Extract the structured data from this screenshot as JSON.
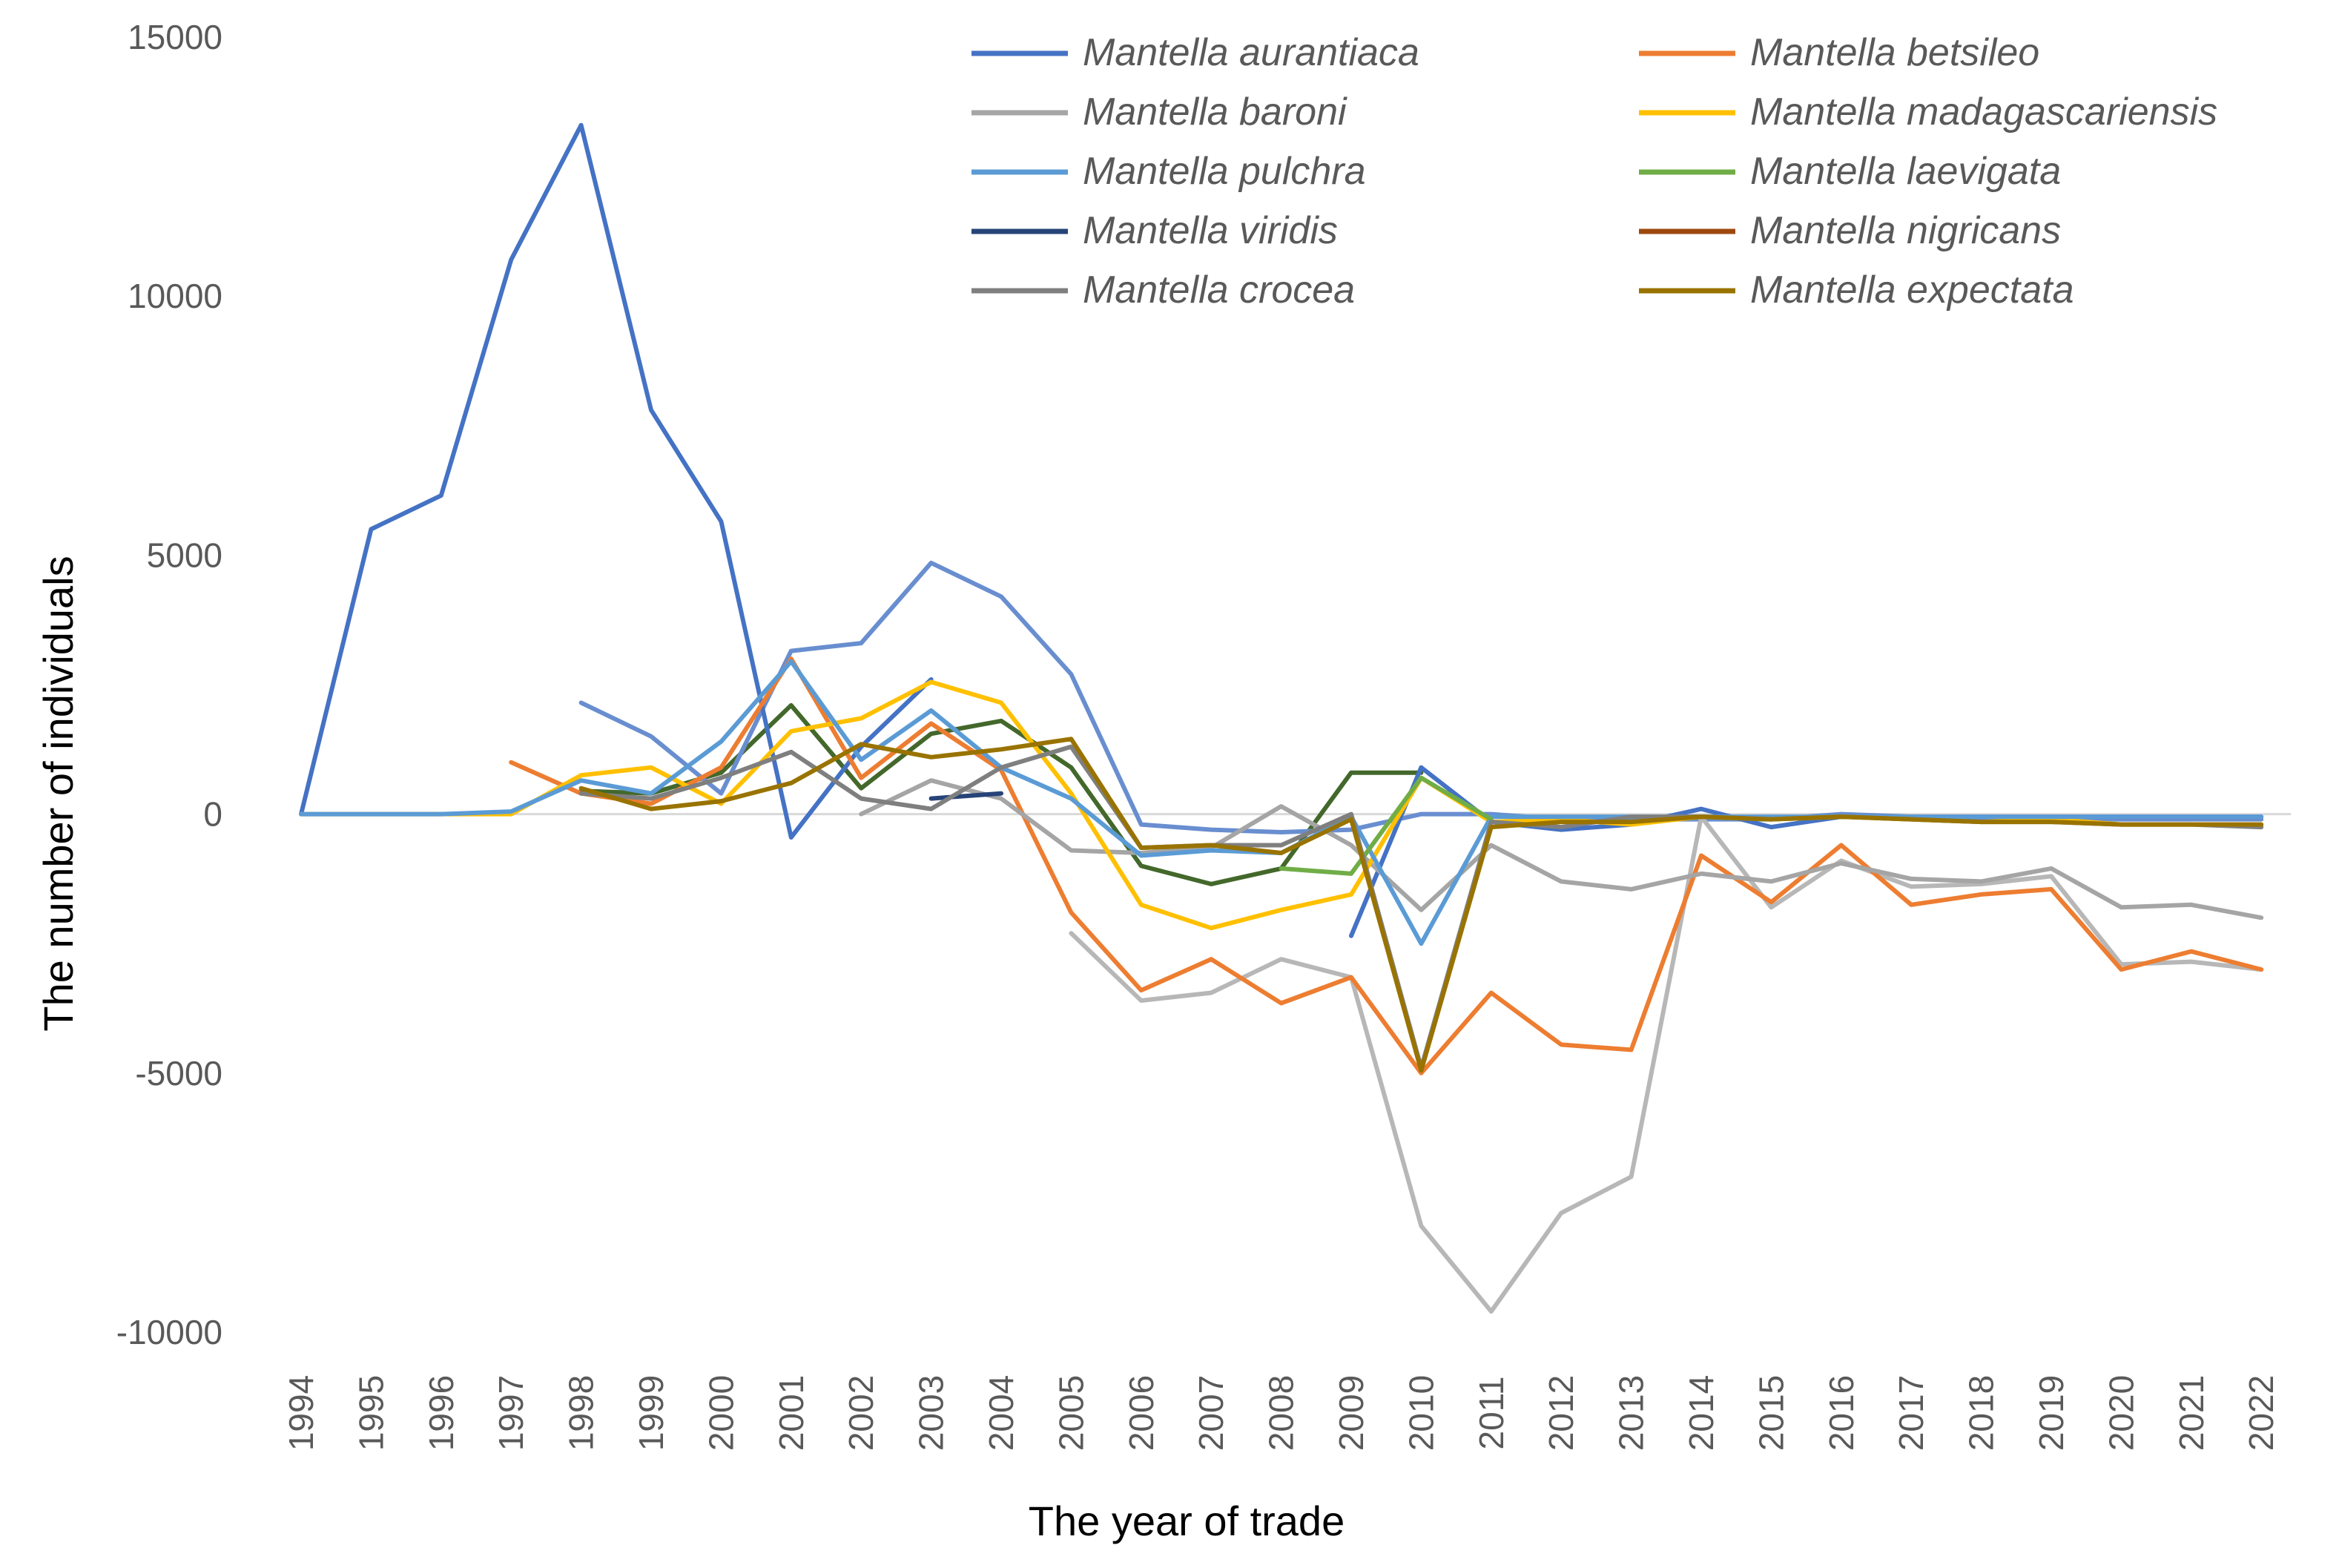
{
  "chart_data": {
    "type": "line",
    "title": "",
    "xlabel": "The year of trade",
    "ylabel": "The number of individuals",
    "ylim": [
      -10000,
      15000
    ],
    "yticks": [
      15000,
      10000,
      5000,
      0,
      -5000,
      -10000
    ],
    "grid": false,
    "legend_position": "top-right",
    "categories": [
      "1994",
      "1995",
      "1996",
      "1997",
      "1998",
      "1999",
      "2000",
      "2001",
      "2002",
      "2003",
      "2004",
      "2005",
      "2006",
      "2007",
      "2008",
      "2009",
      "2010",
      "2011",
      "2012",
      "2013",
      "2014",
      "2015",
      "2016",
      "2017",
      "2018",
      "2019",
      "2020",
      "2021",
      "2022"
    ],
    "series": [
      {
        "name": "Mantella aurantiaca",
        "color": "#4472C4",
        "values": [
          0,
          5500,
          6150,
          10700,
          13300,
          7800,
          5650,
          -450,
          1300,
          2600,
          null,
          null,
          null,
          null,
          null,
          -2350,
          900,
          -150,
          -300,
          -200,
          100,
          -250,
          -50,
          -50,
          -50,
          -50,
          -50,
          -50,
          -50
        ]
      },
      {
        "name": "Mantella betsileo",
        "color": "#ED7D31",
        "values": [
          null,
          null,
          null,
          1000,
          400,
          200,
          900,
          3000,
          700,
          1750,
          850,
          -1900,
          -3400,
          -2800,
          -3650,
          -3150,
          -5000,
          -3450,
          -4450,
          -4550,
          -800,
          -1700,
          -600,
          -1750,
          -1550,
          -1450,
          -3000,
          -2650,
          -3000
        ]
      },
      {
        "name": "Mantella baroni",
        "color": "#A5A5A5",
        "values": [
          null,
          null,
          null,
          null,
          null,
          null,
          null,
          null,
          0,
          650,
          300,
          -700,
          -750,
          -650,
          150,
          -600,
          -1850,
          -600,
          -1300,
          -1450,
          -1150,
          -1300,
          -950,
          -1250,
          -1300,
          -1050,
          -1800,
          -1750,
          -2000
        ]
      },
      {
        "name": "Mantella madagascariensis",
        "color": "#FFC000",
        "values": [
          0,
          0,
          0,
          0,
          750,
          900,
          200,
          1600,
          1850,
          2550,
          2150,
          400,
          -1750,
          -2200,
          -1850,
          -1550,
          700,
          -150,
          -100,
          -200,
          -50,
          -100,
          -50,
          -100,
          -150,
          -100,
          -200,
          -200,
          -200
        ]
      },
      {
        "name": "Mantella pulchra",
        "color": "#5B9BD5",
        "values": [
          0,
          0,
          0,
          50,
          650,
          400,
          1400,
          2950,
          1050,
          2000,
          900,
          300,
          -800,
          -700,
          -750,
          -50,
          -2500,
          -50,
          -50,
          -50,
          -50,
          -50,
          -50,
          -50,
          -50,
          -50,
          -50,
          -50,
          -50
        ]
      },
      {
        "name": "Mantella laevigata",
        "color": "#70AD47",
        "values": [
          null,
          null,
          null,
          null,
          null,
          null,
          null,
          null,
          null,
          null,
          null,
          null,
          null,
          null,
          -1050,
          -1150,
          700,
          -100,
          null,
          null,
          null,
          null,
          null,
          null,
          null,
          null,
          null,
          null,
          null
        ]
      },
      {
        "name": "Mantella viridis",
        "color": "#264478",
        "values": [
          null,
          null,
          null,
          null,
          null,
          null,
          null,
          null,
          null,
          300,
          400,
          null,
          null,
          null,
          null,
          null,
          null,
          null,
          null,
          null,
          null,
          null,
          null,
          null,
          null,
          null,
          null,
          null,
          null
        ]
      },
      {
        "name": "Mantella nigricans",
        "color": "#9E480E",
        "values": [
          null,
          null,
          null,
          null,
          null,
          null,
          null,
          null,
          null,
          null,
          null,
          null,
          null,
          null,
          null,
          null,
          null,
          null,
          null,
          null,
          null,
          null,
          null,
          null,
          null,
          null,
          null,
          null,
          null
        ]
      },
      {
        "name": "Mantella crocea",
        "color": "#7F7F7F",
        "values": [
          null,
          null,
          null,
          null,
          400,
          300,
          700,
          1200,
          300,
          100,
          900,
          1300,
          -650,
          -600,
          -600,
          0,
          -4900,
          -150,
          -250,
          -50,
          -50,
          -100,
          -50,
          -100,
          -150,
          -150,
          -200,
          -200,
          -250
        ]
      },
      {
        "name": "Mantella expectata",
        "color": "#997300",
        "values": [
          null,
          null,
          null,
          null,
          500,
          100,
          250,
          600,
          1350,
          1100,
          1250,
          1450,
          -650,
          -600,
          -750,
          -100,
          -4950,
          -250,
          -150,
          -150,
          -50,
          -100,
          -50,
          -100,
          -150,
          -150,
          -200,
          -200,
          -200
        ]
      }
    ],
    "extra_lines": [
      {
        "color": "#43682B",
        "values": [
          null,
          null,
          null,
          null,
          450,
          400,
          800,
          2100,
          500,
          1550,
          1800,
          900,
          -1000,
          -1350,
          -1050,
          800,
          800,
          null,
          null,
          null,
          null,
          null,
          null,
          null,
          null,
          null,
          null,
          null,
          null
        ]
      },
      {
        "color": "#698ED0",
        "values": [
          null,
          null,
          null,
          null,
          2150,
          1500,
          400,
          3150,
          3300,
          4850,
          4200,
          2700,
          -200,
          -300,
          -350,
          -300,
          0,
          0,
          -100,
          -100,
          -100,
          -100,
          0,
          -50,
          -100,
          -100,
          -100,
          -100,
          -100
        ]
      },
      {
        "color": "#B7B7B7",
        "values": [
          null,
          null,
          null,
          null,
          null,
          null,
          null,
          null,
          null,
          null,
          null,
          -2300,
          -3600,
          -3450,
          -2800,
          -3150,
          -7950,
          -9600,
          -7700,
          -7000,
          -50,
          -1800,
          -900,
          -1400,
          -1350,
          -1200,
          -2900,
          -2850,
          -3000
        ]
      }
    ]
  }
}
